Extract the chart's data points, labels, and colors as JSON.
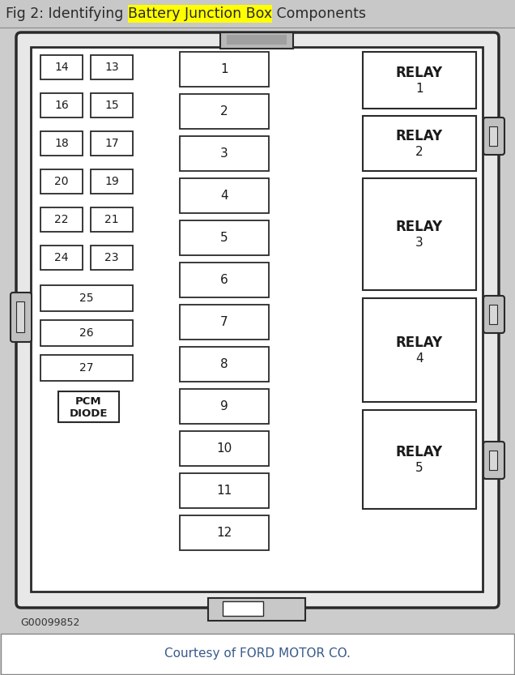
{
  "title_prefix": "Fig 2: Identifying ",
  "title_highlight": "Battery Junction Box",
  "title_suffix": " Components",
  "title_highlight_color": "#ffff00",
  "title_text_color": "#2a2a2a",
  "title_fontsize": 12.5,
  "bg_color": "#cccccc",
  "footer_text": "Courtesy of FORD MOTOR CO.",
  "footer_color": "#3a5a8a",
  "watermark": "G00099852",
  "small_fuses_left_col": [
    "14",
    "16",
    "18",
    "20",
    "22",
    "24"
  ],
  "small_fuses_right_col": [
    "13",
    "15",
    "17",
    "19",
    "21",
    "23"
  ],
  "medium_fuses": [
    "25",
    "26",
    "27"
  ],
  "center_fuses": [
    "1",
    "2",
    "3",
    "4",
    "5",
    "6",
    "7",
    "8",
    "9",
    "10",
    "11",
    "12"
  ],
  "relay_labels": [
    [
      "RELAY",
      "1"
    ],
    [
      "RELAY",
      "2"
    ],
    [
      "RELAY",
      "3"
    ],
    [
      "RELAY",
      "4"
    ],
    [
      "RELAY",
      "5"
    ]
  ]
}
